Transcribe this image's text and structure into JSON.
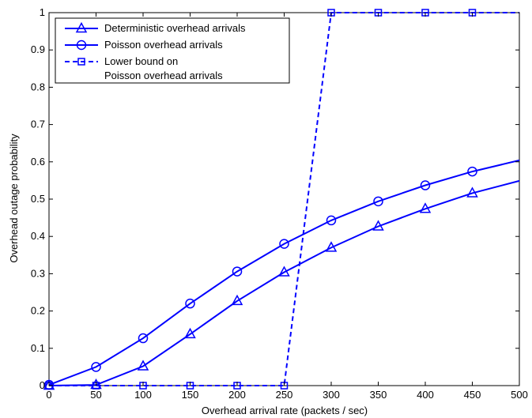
{
  "chart_data": {
    "type": "line",
    "xlabel": "Overhead arrival rate (packets / sec)",
    "ylabel": "Overhead outage probability",
    "xlim": [
      0,
      500
    ],
    "ylim": [
      0,
      1
    ],
    "xticks": [
      0,
      50,
      100,
      150,
      200,
      250,
      300,
      350,
      400,
      450,
      500
    ],
    "yticks": [
      0,
      0.1,
      0.2,
      0.3,
      0.4,
      0.5,
      0.6,
      0.7,
      0.8,
      0.9,
      1
    ],
    "xtick_labels": [
      "0",
      "50",
      "100",
      "150",
      "200",
      "250",
      "300",
      "350",
      "400",
      "450",
      "500"
    ],
    "ytick_labels": [
      "0",
      "0.1",
      "0.2",
      "0.3",
      "0.4",
      "0.5",
      "0.6",
      "0.7",
      "0.8",
      "0.9",
      "1"
    ],
    "grid": false,
    "legend_position": "top-left",
    "line_color": "#0000ff",
    "series": [
      {
        "name": "Deterministic overhead arrivals",
        "marker": "triangle",
        "style": "solid",
        "x": [
          0,
          50,
          100,
          150,
          200,
          250,
          300,
          350,
          400,
          450,
          500
        ],
        "y": [
          0.0,
          0.002,
          0.052,
          0.138,
          0.227,
          0.304,
          0.37,
          0.427,
          0.474,
          0.516,
          0.549
        ],
        "marker_x": [
          0,
          50,
          100,
          150,
          200,
          250,
          300,
          350,
          400,
          450
        ]
      },
      {
        "name": "Poisson overhead arrivals",
        "marker": "circle",
        "style": "solid",
        "x": [
          0,
          50,
          100,
          150,
          200,
          250,
          300,
          350,
          400,
          450,
          500
        ],
        "y": [
          0.002,
          0.05,
          0.127,
          0.22,
          0.306,
          0.38,
          0.443,
          0.494,
          0.537,
          0.574,
          0.604
        ],
        "marker_x": [
          0,
          50,
          100,
          150,
          200,
          250,
          300,
          350,
          400,
          450
        ]
      },
      {
        "name": "Lower bound on\nPoisson overhead arrivals",
        "legend_lines": [
          "Lower bound on",
          "Poisson overhead arrivals"
        ],
        "marker": "square",
        "style": "dashed",
        "x": [
          0,
          50,
          100,
          150,
          200,
          250,
          300,
          350,
          400,
          450,
          500
        ],
        "y": [
          0,
          0,
          0,
          0,
          0,
          0,
          1,
          1,
          1,
          1,
          1
        ],
        "marker_x": [
          0,
          50,
          100,
          150,
          200,
          250,
          300,
          350,
          400,
          450
        ]
      }
    ]
  }
}
